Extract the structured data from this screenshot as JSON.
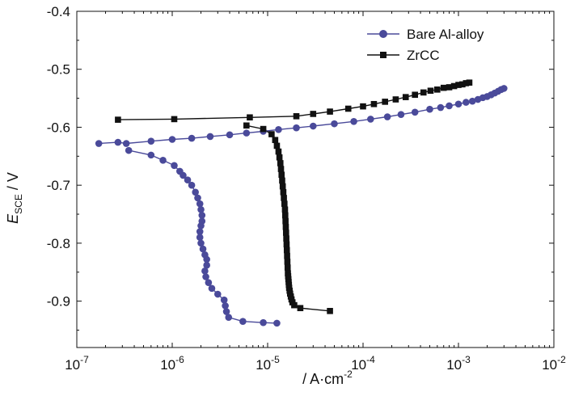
{
  "chart_data": {
    "type": "line",
    "title": "",
    "xlabel": {
      "main": "/ A·cm",
      "sup": "-2"
    },
    "ylabel": {
      "italic": "E",
      "sub": "SCE",
      "rest": " / V"
    },
    "xscale": "log",
    "xlim": [
      1e-07,
      0.01
    ],
    "ylim": [
      -0.98,
      -0.4
    ],
    "x_ticks": [
      {
        "value": 1e-07,
        "base": "10",
        "exp": "-7"
      },
      {
        "value": 1e-06,
        "base": "10",
        "exp": "-6"
      },
      {
        "value": 1e-05,
        "base": "10",
        "exp": "-5"
      },
      {
        "value": 0.0001,
        "base": "10",
        "exp": "-4"
      },
      {
        "value": 0.001,
        "base": "10",
        "exp": "-3"
      },
      {
        "value": 0.01,
        "base": "10",
        "exp": "-2"
      }
    ],
    "y_ticks": [
      {
        "value": -0.4,
        "label": "-0.4"
      },
      {
        "value": -0.5,
        "label": "-0.5"
      },
      {
        "value": -0.6,
        "label": "-0.6"
      },
      {
        "value": -0.7,
        "label": "-0.7"
      },
      {
        "value": -0.8,
        "label": "-0.8"
      },
      {
        "value": -0.9,
        "label": "-0.9"
      }
    ],
    "legend": {
      "position": "top-right"
    },
    "series": [
      {
        "name": "Bare Al-alloy",
        "color": "#4a4a9a",
        "marker": "circle",
        "anodic": {
          "x": [
            1.7e-07,
            2.7e-07,
            3.3e-07,
            6e-07,
            1e-06,
            1.6e-06,
            2.5e-06,
            4e-06,
            6e-06,
            9e-06,
            1.3e-05,
            2e-05,
            3e-05,
            5e-05,
            8e-05,
            0.00012,
            0.00018,
            0.00025,
            0.00035,
            0.0005,
            0.00065,
            0.0008,
            0.001,
            0.0012,
            0.0014,
            0.0016,
            0.0018,
            0.002,
            0.0022,
            0.0024,
            0.0026,
            0.0028,
            0.003
          ],
          "y": [
            -0.628,
            -0.626,
            -0.628,
            -0.624,
            -0.621,
            -0.619,
            -0.616,
            -0.613,
            -0.61,
            -0.607,
            -0.604,
            -0.601,
            -0.598,
            -0.594,
            -0.59,
            -0.586,
            -0.582,
            -0.578,
            -0.574,
            -0.569,
            -0.566,
            -0.563,
            -0.56,
            -0.557,
            -0.555,
            -0.552,
            -0.549,
            -0.547,
            -0.544,
            -0.541,
            -0.538,
            -0.535,
            -0.533
          ]
        },
        "cathodic": {
          "x": [
            3.5e-07,
            6e-07,
            8e-07,
            1.05e-06,
            1.2e-06,
            1.3e-06,
            1.45e-06,
            1.6e-06,
            1.75e-06,
            1.85e-06,
            1.95e-06,
            2e-06,
            2.05e-06,
            2.05e-06,
            2e-06,
            1.95e-06,
            1.95e-06,
            2e-06,
            2.1e-06,
            2.2e-06,
            2.3e-06,
            2.3e-06,
            2.2e-06,
            2.25e-06,
            2.4e-06,
            2.6e-06,
            3e-06,
            3.5e-06,
            3.6e-06,
            3.7e-06,
            3.9e-06,
            5.5e-06,
            9e-06,
            1.25e-05
          ],
          "y": [
            -0.64,
            -0.648,
            -0.657,
            -0.666,
            -0.676,
            -0.683,
            -0.691,
            -0.7,
            -0.712,
            -0.722,
            -0.732,
            -0.742,
            -0.752,
            -0.762,
            -0.77,
            -0.78,
            -0.79,
            -0.8,
            -0.81,
            -0.82,
            -0.828,
            -0.838,
            -0.848,
            -0.858,
            -0.868,
            -0.878,
            -0.888,
            -0.898,
            -0.908,
            -0.918,
            -0.928,
            -0.935,
            -0.937,
            -0.938
          ]
        }
      },
      {
        "name": "ZrCC",
        "color": "#111111",
        "marker": "square",
        "anodic": {
          "x": [
            2.7e-07,
            1.05e-06,
            6.5e-06,
            2e-05,
            3e-05,
            4.5e-05,
            7e-05,
            0.0001,
            0.00013,
            0.00017,
            0.00022,
            0.00028,
            0.00035,
            0.00043,
            0.00051,
            0.0006,
            0.0007,
            0.0008,
            0.0009,
            0.001,
            0.0011,
            0.0012,
            0.0013
          ],
          "y": [
            -0.587,
            -0.586,
            -0.583,
            -0.581,
            -0.577,
            -0.573,
            -0.568,
            -0.564,
            -0.56,
            -0.556,
            -0.552,
            -0.548,
            -0.544,
            -0.54,
            -0.537,
            -0.535,
            -0.532,
            -0.531,
            -0.529,
            -0.527,
            -0.526,
            -0.524,
            -0.523
          ]
        },
        "cathodic": {
          "x": [
            6e-06,
            9e-06,
            1.1e-05,
            1.2e-05,
            1.25e-05,
            1.3e-05,
            1.33e-05,
            1.36e-05,
            1.38e-05,
            1.4e-05,
            1.42e-05,
            1.44e-05,
            1.46e-05,
            1.48e-05,
            1.5e-05,
            1.52e-05,
            1.53e-05,
            1.54e-05,
            1.55e-05,
            1.56e-05,
            1.57e-05,
            1.58e-05,
            1.59e-05,
            1.6e-05,
            1.61e-05,
            1.62e-05,
            1.63e-05,
            1.64e-05,
            1.65e-05,
            1.66e-05,
            1.67e-05,
            1.68e-05,
            1.7e-05,
            1.72e-05,
            1.75e-05,
            1.78e-05,
            1.82e-05,
            1.9e-05,
            2.2e-05,
            4.5e-05
          ],
          "y": [
            -0.597,
            -0.603,
            -0.612,
            -0.622,
            -0.632,
            -0.642,
            -0.652,
            -0.662,
            -0.672,
            -0.682,
            -0.692,
            -0.702,
            -0.712,
            -0.722,
            -0.732,
            -0.742,
            -0.752,
            -0.762,
            -0.772,
            -0.782,
            -0.792,
            -0.802,
            -0.812,
            -0.822,
            -0.832,
            -0.842,
            -0.852,
            -0.857,
            -0.862,
            -0.867,
            -0.872,
            -0.877,
            -0.882,
            -0.887,
            -0.892,
            -0.897,
            -0.902,
            -0.907,
            -0.912,
            -0.917
          ]
        }
      }
    ]
  }
}
